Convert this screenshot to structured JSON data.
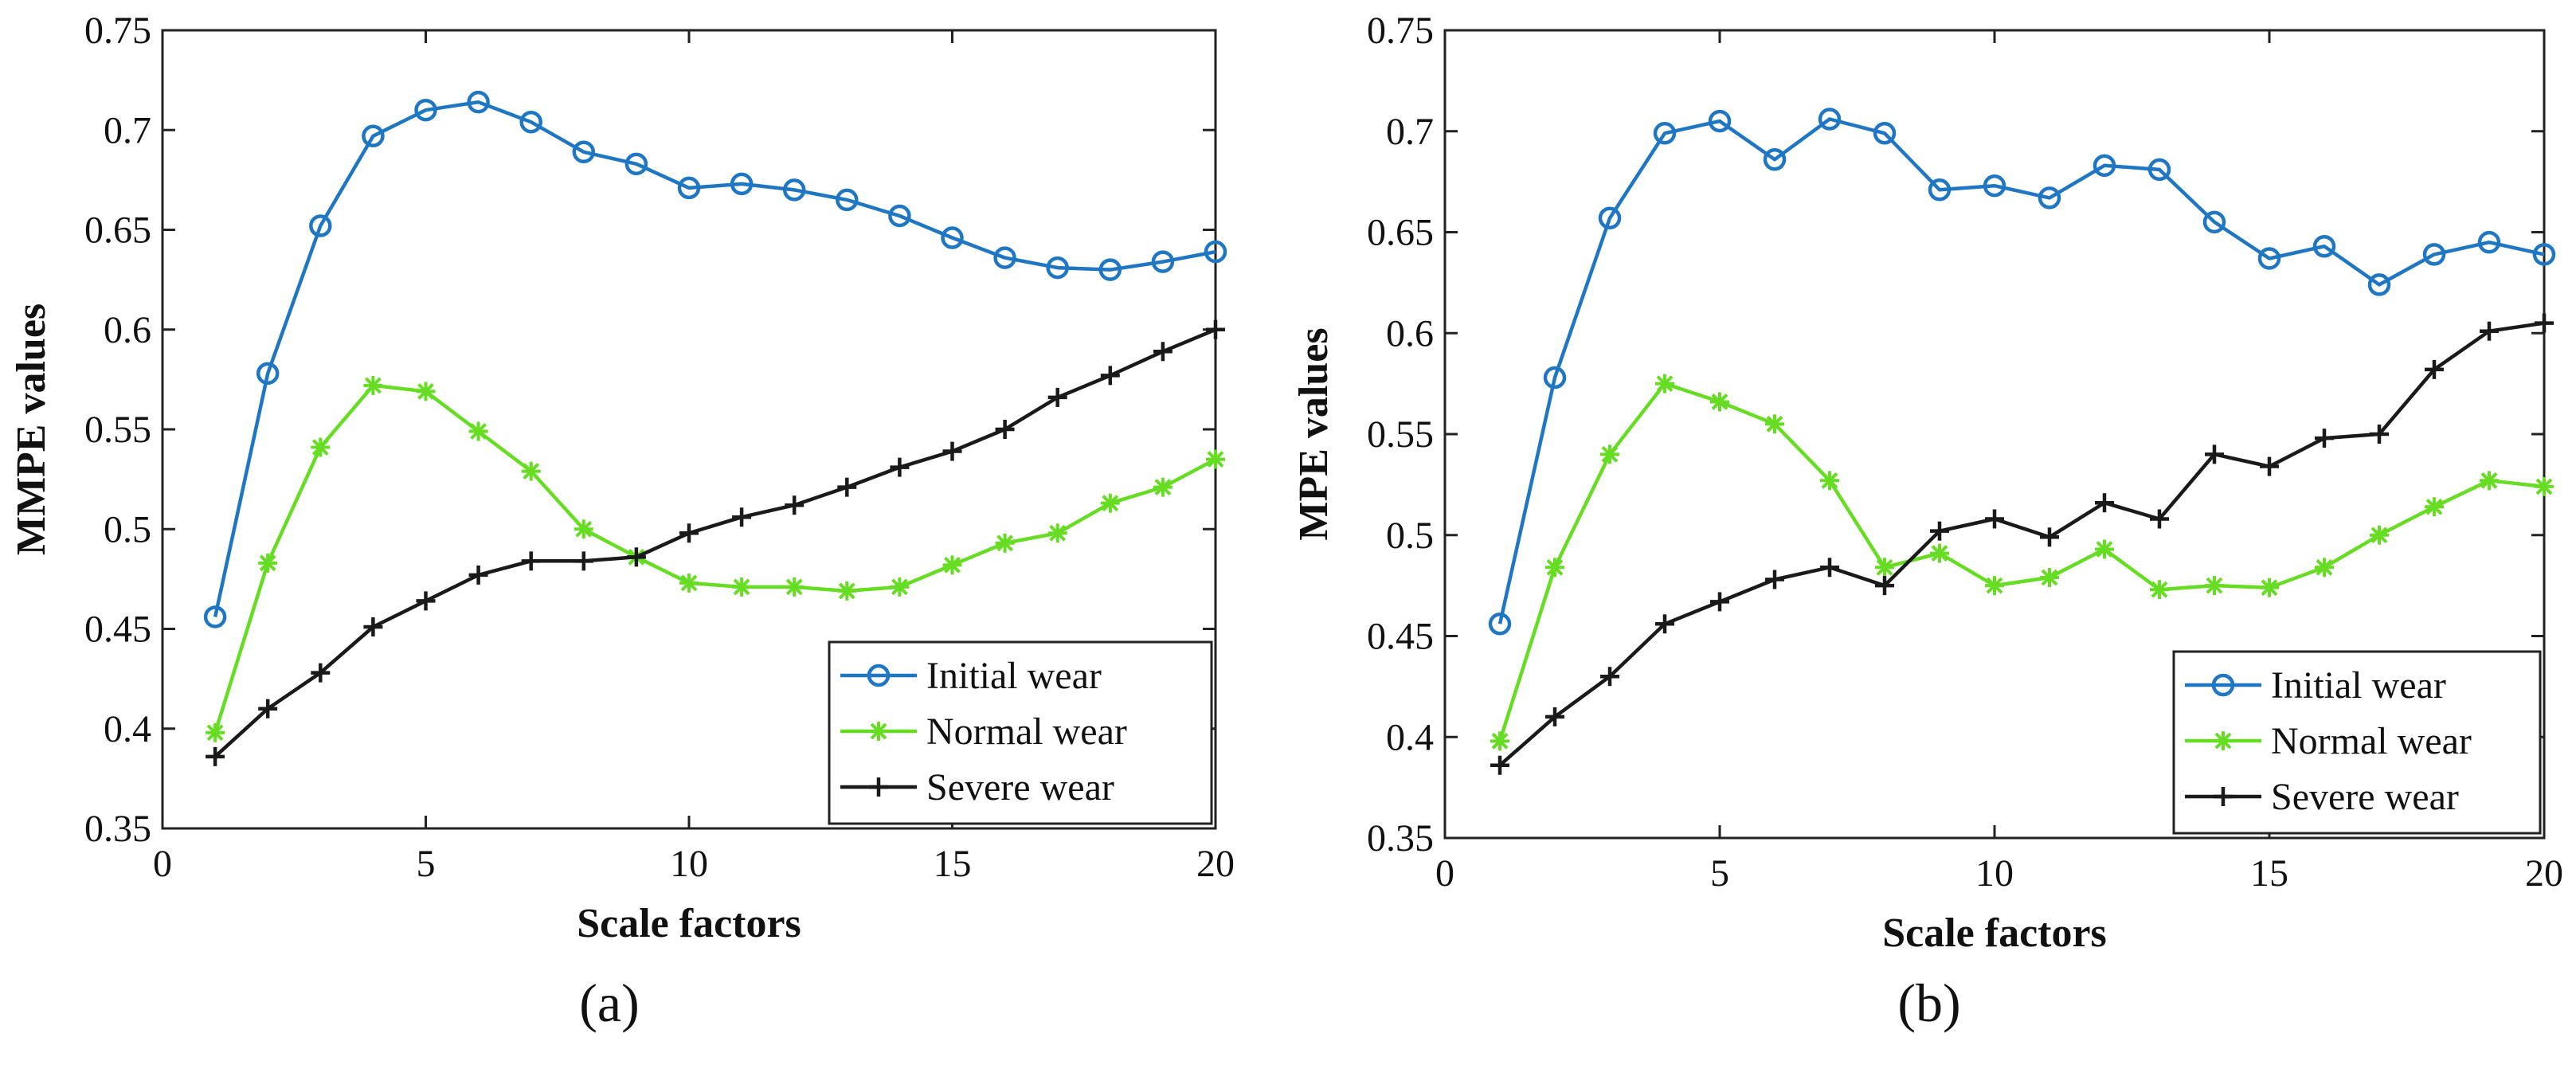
{
  "chart_data": [
    {
      "type": "line",
      "panel_label": "(a)",
      "xlabel": "Scale factors",
      "ylabel": "MMPE values",
      "xlim": [
        0,
        20
      ],
      "ylim": [
        0.35,
        0.75
      ],
      "x_ticks": [
        "0",
        "5",
        "10",
        "15",
        "20"
      ],
      "y_ticks": [
        "0.35",
        "0.4",
        "0.45",
        "0.5",
        "0.55",
        "0.6",
        "0.65",
        "0.7",
        "0.75"
      ],
      "grid": false,
      "legend_position": "bottom-right",
      "x": [
        1,
        2,
        3,
        4,
        5,
        6,
        7,
        8,
        9,
        10,
        11,
        12,
        13,
        14,
        15,
        16,
        17,
        18,
        19,
        20
      ],
      "series": [
        {
          "name": "Initial wear",
          "color": "#1f77c4",
          "marker": "circle",
          "values": [
            0.456,
            0.578,
            0.652,
            0.697,
            0.71,
            0.714,
            0.704,
            0.689,
            0.683,
            0.671,
            0.673,
            0.67,
            0.665,
            0.657,
            0.646,
            0.636,
            0.631,
            0.63,
            0.634,
            0.639
          ]
        },
        {
          "name": "Normal wear",
          "color": "#66dd22",
          "marker": "asterisk",
          "values": [
            0.398,
            0.483,
            0.541,
            0.572,
            0.569,
            0.549,
            0.529,
            0.5,
            0.486,
            0.473,
            0.471,
            0.471,
            0.469,
            0.471,
            0.482,
            0.493,
            0.498,
            0.513,
            0.521,
            0.535
          ]
        },
        {
          "name": "Severe wear",
          "color": "#1a1a1a",
          "marker": "plus",
          "values": [
            0.386,
            0.41,
            0.428,
            0.451,
            0.464,
            0.477,
            0.484,
            0.484,
            0.486,
            0.498,
            0.506,
            0.512,
            0.521,
            0.531,
            0.539,
            0.55,
            0.566,
            0.577,
            0.589,
            0.6
          ]
        }
      ]
    },
    {
      "type": "line",
      "panel_label": "(b)",
      "xlabel": "Scale factors",
      "ylabel": "MPE values",
      "xlim": [
        0,
        20
      ],
      "ylim": [
        0.35,
        0.75
      ],
      "x_ticks": [
        "0",
        "5",
        "10",
        "15",
        "20"
      ],
      "y_ticks": [
        "0.35",
        "0.4",
        "0.45",
        "0.5",
        "0.55",
        "0.6",
        "0.65",
        "0.7",
        "0.75"
      ],
      "grid": false,
      "legend_position": "bottom-right",
      "x": [
        1,
        2,
        3,
        4,
        5,
        6,
        7,
        8,
        9,
        10,
        11,
        12,
        13,
        14,
        15,
        16,
        17,
        18,
        19,
        20
      ],
      "series": [
        {
          "name": "Initial wear",
          "color": "#1f77c4",
          "marker": "circle",
          "values": [
            0.456,
            0.578,
            0.657,
            0.699,
            0.705,
            0.686,
            0.706,
            0.699,
            0.671,
            0.673,
            0.667,
            0.683,
            0.681,
            0.655,
            0.637,
            0.643,
            0.624,
            0.639,
            0.645,
            0.639
          ]
        },
        {
          "name": "Normal wear",
          "color": "#66dd22",
          "marker": "asterisk",
          "values": [
            0.398,
            0.484,
            0.54,
            0.575,
            0.566,
            0.555,
            0.527,
            0.484,
            0.491,
            0.475,
            0.479,
            0.493,
            0.473,
            0.475,
            0.474,
            0.484,
            0.5,
            0.514,
            0.527,
            0.524
          ]
        },
        {
          "name": "Severe wear",
          "color": "#1a1a1a",
          "marker": "plus",
          "values": [
            0.386,
            0.41,
            0.43,
            0.456,
            0.467,
            0.478,
            0.484,
            0.475,
            0.502,
            0.508,
            0.499,
            0.516,
            0.508,
            0.54,
            0.534,
            0.548,
            0.55,
            0.582,
            0.601,
            0.605
          ]
        }
      ]
    }
  ]
}
